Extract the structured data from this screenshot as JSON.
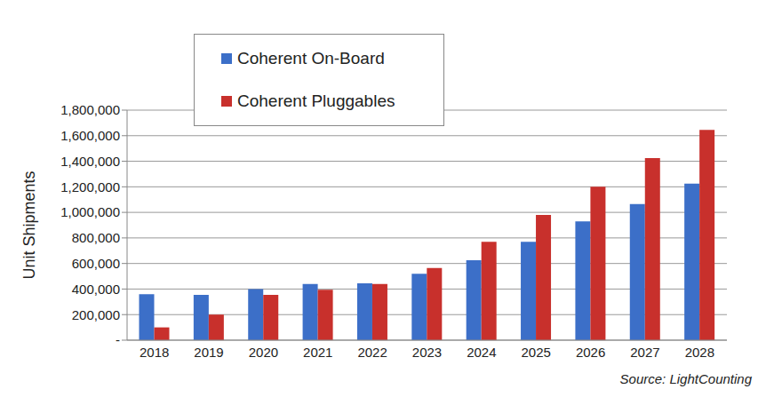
{
  "chart_data": {
    "type": "bar",
    "categories": [
      "2018",
      "2019",
      "2020",
      "2021",
      "2022",
      "2023",
      "2024",
      "2025",
      "2026",
      "2027",
      "2028"
    ],
    "series": [
      {
        "name": "Coherent On-Board",
        "color": "#3c6fc8",
        "values": [
          360000,
          355000,
          400000,
          440000,
          445000,
          520000,
          625000,
          770000,
          930000,
          1065000,
          1225000
        ]
      },
      {
        "name": "Coherent Pluggables",
        "color": "#c8302c",
        "values": [
          100000,
          200000,
          355000,
          395000,
          440000,
          565000,
          770000,
          980000,
          1200000,
          1425000,
          1645000
        ]
      }
    ],
    "ylabel": "Unit Shipments",
    "ylim": [
      0,
      1800000
    ],
    "yticks": [
      {
        "value": 0,
        "label": "-"
      },
      {
        "value": 200000,
        "label": "200,000"
      },
      {
        "value": 400000,
        "label": "400,000"
      },
      {
        "value": 600000,
        "label": "600,000"
      },
      {
        "value": 800000,
        "label": "800,000"
      },
      {
        "value": 1000000,
        "label": "1,000,000"
      },
      {
        "value": 1200000,
        "label": "1,200,000"
      },
      {
        "value": 1400000,
        "label": "1,400,000"
      },
      {
        "value": 1600000,
        "label": "1,600,000"
      },
      {
        "value": 1800000,
        "label": "1,800,000"
      }
    ],
    "grid": true,
    "legend": "upper left",
    "source": "Source: LightCounting"
  }
}
